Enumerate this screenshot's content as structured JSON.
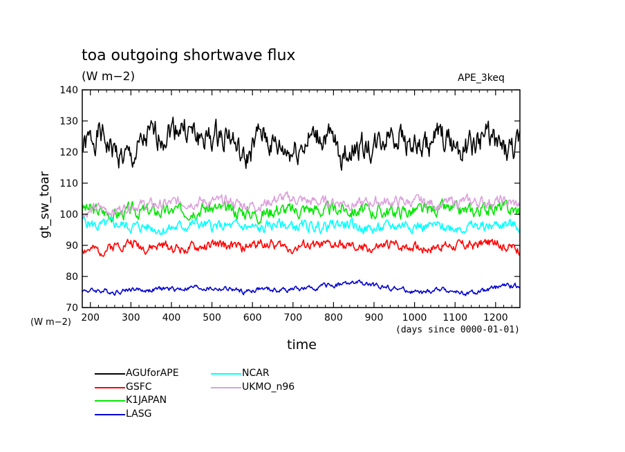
{
  "header": {
    "title": "toa outgoing shortwave flux",
    "units": "(W m−2)",
    "run_id": "APE_3keq"
  },
  "axes": {
    "y_name": "gt_sw_toar",
    "y_units": "(W m−2)",
    "x_name": "time",
    "x_units": "(days since 0000-01-01)"
  },
  "chart_data": {
    "type": "line",
    "title": "toa outgoing shortwave flux",
    "subtitle": "(W m−2)",
    "annotation": "APE_3keq",
    "xlabel": "time",
    "x_units": "(days since 0000-01-01)",
    "ylabel": "gt_sw_toar",
    "y_units": "(W m−2)",
    "xlim": [
      180,
      1260
    ],
    "ylim": [
      70,
      140
    ],
    "xticks": [
      200,
      300,
      400,
      500,
      600,
      700,
      800,
      900,
      1000,
      1100,
      1200
    ],
    "yticks": [
      70,
      80,
      90,
      100,
      110,
      120,
      130,
      140
    ],
    "grid": false,
    "legend_position": "bottom-left, below plot",
    "x": [
      180,
      220,
      260,
      300,
      340,
      380,
      420,
      460,
      500,
      540,
      580,
      620,
      660,
      700,
      740,
      780,
      820,
      860,
      900,
      940,
      980,
      1020,
      1060,
      1100,
      1140,
      1180,
      1220,
      1260
    ],
    "series": [
      {
        "name": "AGUforAPE",
        "color": "#000000",
        "noise": 4.5,
        "values": [
          121,
          126,
          120,
          117,
          124,
          126,
          129,
          125,
          124,
          127,
          116,
          126,
          121,
          120,
          124,
          125,
          119,
          122,
          121,
          127,
          124,
          120,
          125,
          122,
          121,
          126,
          120,
          121
        ]
      },
      {
        "name": "GSFC",
        "color": "#ff0000",
        "noise": 1.6,
        "values": [
          89,
          88,
          90,
          91,
          89,
          90,
          89,
          89,
          90,
          90,
          89,
          91,
          90,
          89,
          90,
          90,
          90,
          89,
          89,
          90,
          90,
          89,
          90,
          90,
          90,
          91,
          90,
          89
        ]
      },
      {
        "name": "K1JAPAN",
        "color": "#00e600",
        "noise": 2.3,
        "values": [
          102,
          101,
          100,
          101,
          101,
          101,
          101,
          102,
          102,
          101,
          101,
          100,
          102,
          101,
          102,
          101,
          102,
          101,
          101,
          101,
          101,
          101,
          102,
          101,
          101,
          102,
          102,
          101
        ]
      },
      {
        "name": "LASG",
        "color": "#0000d0",
        "noise": 0.8,
        "values": [
          75.5,
          75.5,
          75,
          76,
          75.5,
          76,
          76,
          76.5,
          76,
          76,
          75,
          76,
          75.5,
          76,
          76,
          77,
          77.5,
          78,
          77,
          76.5,
          75.5,
          74.5,
          76,
          75,
          74.5,
          75.5,
          77,
          77
        ]
      },
      {
        "name": "NCAR",
        "color": "#00ffff",
        "noise": 1.8,
        "values": [
          98,
          96,
          97,
          96,
          96,
          95,
          96,
          97,
          96,
          96,
          96,
          95,
          97,
          96,
          96,
          96,
          97,
          96,
          95,
          96,
          97,
          96,
          96,
          96,
          96,
          96,
          97,
          96
        ]
      },
      {
        "name": "UKMO_n96",
        "color": "#dca0dc",
        "noise": 1.8,
        "values": [
          100,
          102,
          101,
          103,
          103,
          103,
          104,
          104,
          104,
          104,
          103,
          103,
          105,
          105,
          104,
          104,
          104,
          103,
          104,
          104,
          104,
          104,
          103,
          104,
          104,
          104,
          104,
          103
        ]
      }
    ]
  },
  "legend": {
    "items": [
      {
        "label": "AGUforAPE",
        "color": "#000000"
      },
      {
        "label": "GSFC",
        "color": "#ff0000"
      },
      {
        "label": "K1JAPAN",
        "color": "#00e600"
      },
      {
        "label": "LASG",
        "color": "#0000d0"
      },
      {
        "label": "NCAR",
        "color": "#00ffff"
      },
      {
        "label": "UKMO_n96",
        "color": "#dca0dc"
      }
    ]
  }
}
